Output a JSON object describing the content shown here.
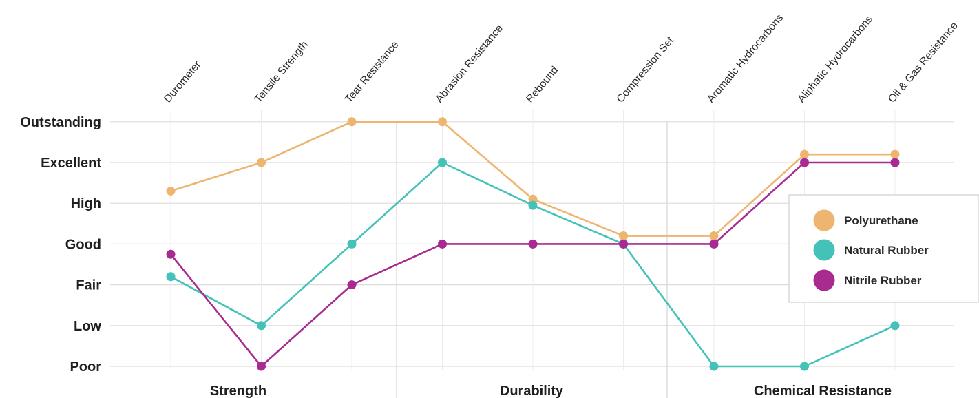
{
  "chart_data": {
    "type": "line",
    "title": "",
    "xlabel": "",
    "ylabel": "",
    "categories": [
      "Durometer",
      "Tensile Strength",
      "Tear Resistance",
      "Abrasion Resistance",
      "Rebound",
      "Compression Set",
      "Aromatic Hydrocarbons",
      "Aliphatic Hydrocarbons",
      "Oil & Gas Resistance"
    ],
    "y_levels": [
      "Poor",
      "Low",
      "Fair",
      "Good",
      "High",
      "Excellent",
      "Outstanding"
    ],
    "ylim": [
      0,
      6
    ],
    "groups": [
      {
        "label": "Strength",
        "categories": [
          "Durometer",
          "Tensile Strength",
          "Tear Resistance"
        ]
      },
      {
        "label": "Durability",
        "categories": [
          "Abrasion Resistance",
          "Rebound",
          "Compression Set"
        ]
      },
      {
        "label": "Chemical Resistance",
        "categories": [
          "Aromatic Hydrocarbons",
          "Aliphatic Hydrocarbons",
          "Oil & Gas Resistance"
        ]
      }
    ],
    "series": [
      {
        "name": "Polyurethane",
        "color": "#EDB56F",
        "values": [
          4.3,
          5,
          6,
          6,
          4.1,
          3.2,
          3.2,
          5.2,
          5.2
        ]
      },
      {
        "name": "Natural Rubber",
        "color": "#45C2B8",
        "values": [
          2.2,
          1,
          3,
          5,
          3.95,
          3,
          0,
          0,
          1
        ]
      },
      {
        "name": "Nitrile Rubber",
        "color": "#A72B90",
        "values": [
          2.75,
          0,
          2,
          3,
          3,
          3,
          3,
          5,
          5
        ]
      }
    ],
    "grid": true,
    "legend_position": "right"
  }
}
